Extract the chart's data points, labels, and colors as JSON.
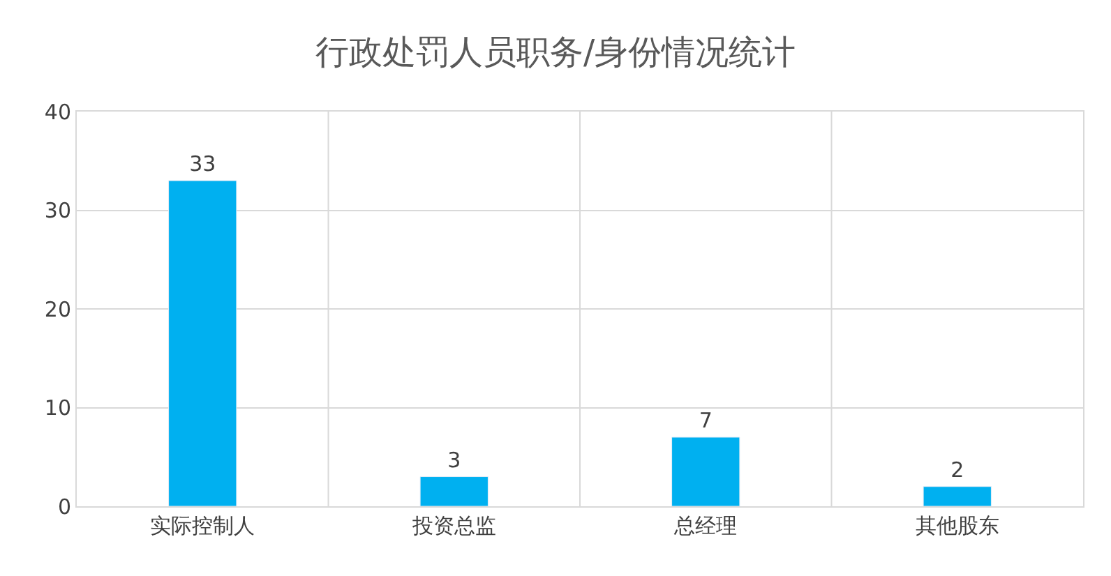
{
  "chart_data": {
    "type": "bar",
    "title": "行政处罚人员职务/身份情况统计",
    "categories": [
      "实际控制人",
      "投资总监",
      "总经理",
      "其他股东"
    ],
    "series": [
      {
        "color": "#00b0f0",
        "values": [
          33,
          3,
          7,
          2
        ]
      }
    ],
    "ylim": [
      0,
      40
    ],
    "yticks": [
      0,
      10,
      20,
      30,
      40
    ],
    "grid": true,
    "data_labels": true,
    "legend": false
  }
}
